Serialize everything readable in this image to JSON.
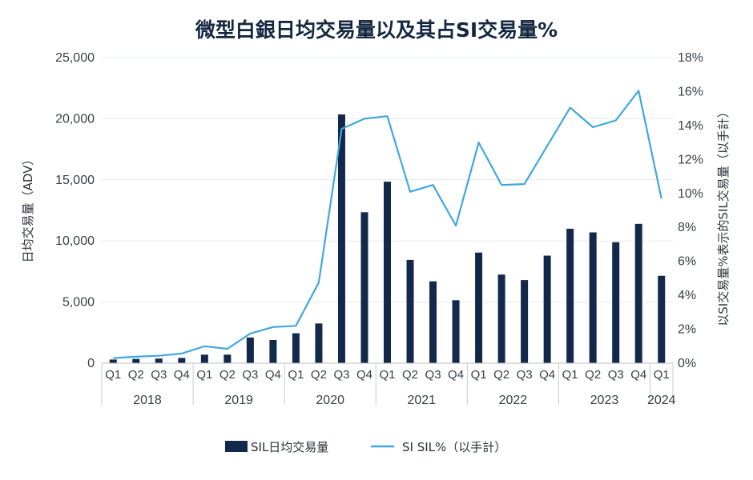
{
  "chart_data": {
    "type": "bar+line",
    "title": "微型白銀日均交易量以及其占SI交易量%",
    "ylabel": "日均交易量（ADV）",
    "y2label": "以SI交易量%表示的SIL交易量（以手計）",
    "ylim": [
      0,
      25000
    ],
    "y2lim": [
      0,
      18
    ],
    "yticks": [
      "0",
      "5,000",
      "10,000",
      "15,000",
      "20,000",
      "25,000"
    ],
    "y2ticks": [
      "0%",
      "2%",
      "4%",
      "6%",
      "8%",
      "10%",
      "12%",
      "14%",
      "16%",
      "18%"
    ],
    "grid": true,
    "legend_position": "bottom",
    "categories": [
      "Q1",
      "Q2",
      "Q3",
      "Q4",
      "Q1",
      "Q2",
      "Q3",
      "Q4",
      "Q1",
      "Q2",
      "Q3",
      "Q4",
      "Q1",
      "Q2",
      "Q3",
      "Q4",
      "Q1",
      "Q2",
      "Q3",
      "Q4",
      "Q1",
      "Q2",
      "Q3",
      "Q4",
      "Q1"
    ],
    "years": [
      {
        "label": "2018",
        "count": 4
      },
      {
        "label": "2019",
        "count": 4
      },
      {
        "label": "2020",
        "count": 4
      },
      {
        "label": "2021",
        "count": 4
      },
      {
        "label": "2022",
        "count": 4
      },
      {
        "label": "2023",
        "count": 4
      },
      {
        "label": "2024",
        "count": 1
      }
    ],
    "series": [
      {
        "name": "SIL日均交易量",
        "type": "bar",
        "axis": "left",
        "color": "#13294b",
        "values": [
          300,
          350,
          380,
          430,
          700,
          700,
          2100,
          1900,
          2450,
          3250,
          20350,
          12350,
          14850,
          8450,
          6700,
          5150,
          9050,
          7250,
          6800,
          8800,
          11000,
          10700,
          9900,
          11400,
          7150
        ]
      },
      {
        "name": "SI SIL%（以手計）",
        "type": "line",
        "axis": "right",
        "color": "#3fa8de",
        "values": [
          0.3,
          0.38,
          0.44,
          0.57,
          1.0,
          0.85,
          1.75,
          2.13,
          2.2,
          4.75,
          13.8,
          14.4,
          14.55,
          10.1,
          10.5,
          8.1,
          13.0,
          10.5,
          10.55,
          12.8,
          15.05,
          13.9,
          14.3,
          16.05,
          9.7
        ]
      }
    ]
  }
}
